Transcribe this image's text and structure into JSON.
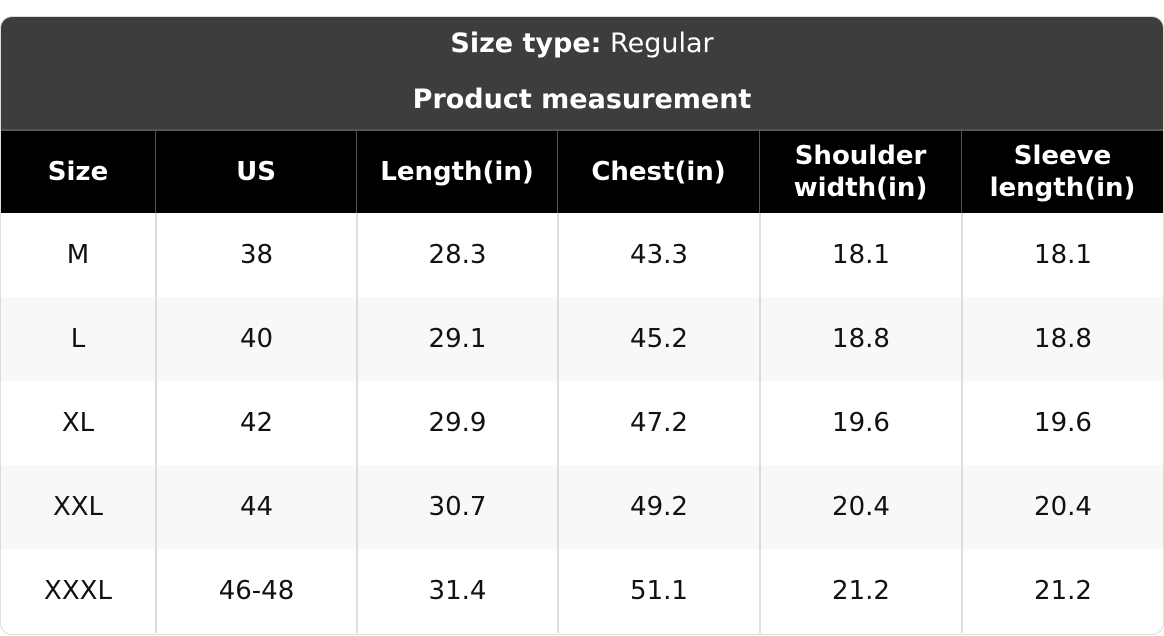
{
  "header": {
    "size_type_label": "Size type:",
    "size_type_value": "Regular",
    "subtitle": "Product measurement"
  },
  "table": {
    "columns": [
      "Size",
      "US",
      "Length(in)",
      "Chest(in)",
      "Shoulder width(in)",
      "Sleeve length(in)"
    ],
    "rows": [
      [
        "M",
        "38",
        "28.3",
        "43.3",
        "18.1",
        "18.1"
      ],
      [
        "L",
        "40",
        "29.1",
        "45.2",
        "18.8",
        "18.8"
      ],
      [
        "XL",
        "42",
        "29.9",
        "47.2",
        "19.6",
        "19.6"
      ],
      [
        "XXL",
        "44",
        "30.7",
        "49.2",
        "20.4",
        "20.4"
      ],
      [
        "XXXL",
        "46-48",
        "31.4",
        "51.1",
        "21.2",
        "21.2"
      ]
    ]
  }
}
